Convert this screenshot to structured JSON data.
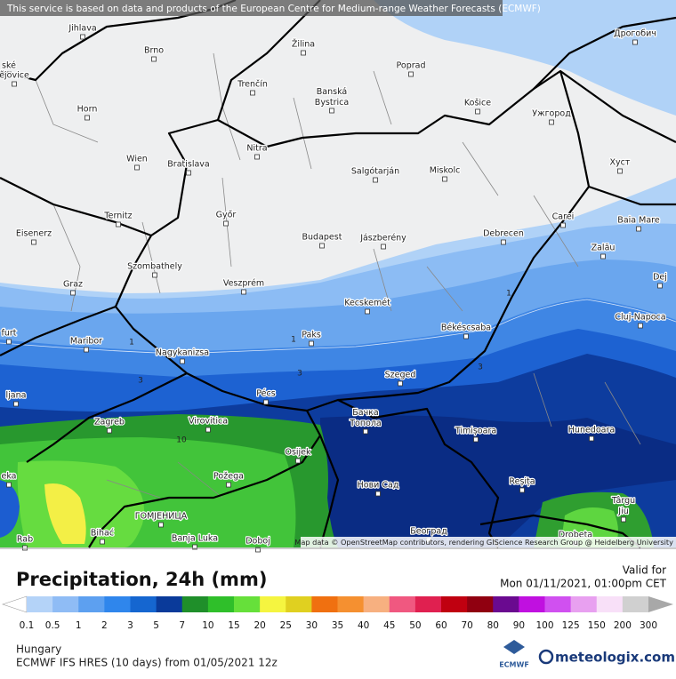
{
  "map": {
    "notice": "This service is based on data and products of the European Centre for Medium-range Weather Forecasts (ECMWF)",
    "cities": [
      "Jihlava",
      "Brno",
      "Žilina",
      "Poprad",
      "Дрогобич",
      "ské",
      "ějovice",
      "Trenčín",
      "Banská Bystrica",
      "Košice",
      "Ужгород",
      "Horn",
      "Nitra",
      "Wien",
      "Bratislava",
      "Salgótarján",
      "Miskolc",
      "Хуст",
      "Ternitz",
      "Győr",
      "Carei",
      "Baia Mare",
      "Eisenerz",
      "Budapest",
      "Jászberény",
      "Debrecen",
      "Szombathely",
      "Zalău",
      "Graz",
      "Veszprém",
      "Dej",
      "Kecskemét",
      "Cluj-Napoca",
      "furt",
      "Maribor",
      "Paks",
      "Békéscsaba",
      "Nagykanizsa",
      "Szeged",
      "ljana",
      "Pécs",
      "Бачка Топола",
      "Zagreb",
      "Virovitica",
      "Timișoara",
      "Hunedoara",
      "Osijek",
      "eka",
      "Požega",
      "Нови Сад",
      "Reșița",
      "Târgu Jiu",
      "ГОМЈЕНИЦА",
      "Bihać",
      "Banja Luka",
      "Doboj",
      "Београд",
      "Drobeta",
      "Rab"
    ],
    "contour_labels": [
      1,
      1,
      3,
      3,
      1,
      3,
      10
    ],
    "attribution": "Map data © OpenStreetMap contributors, rendering GIScience Research Group @ Heidelberg University"
  },
  "legend": {
    "title": "Precipitation, 24h (mm)",
    "valid_label": "Valid for",
    "valid_time": "Mon 01/11/2021, 01:00pm CET",
    "labels": [
      0.1,
      0.5,
      1,
      2,
      3,
      5,
      7,
      10,
      15,
      20,
      25,
      30,
      35,
      40,
      45,
      50,
      60,
      70,
      80,
      90,
      100,
      125,
      150,
      200,
      300
    ],
    "colors": [
      "#b4d3f8",
      "#8fbcf5",
      "#5da0f0",
      "#2f86ec",
      "#1566d0",
      "#0a3a9a",
      "#1f8f2a",
      "#2fbf2a",
      "#66e03a",
      "#f5f540",
      "#e0d020",
      "#f07010",
      "#f59030",
      "#f7b080",
      "#f05880",
      "#e02050",
      "#c00010",
      "#900010",
      "#6a0a90",
      "#c010e0",
      "#d050f0",
      "#e8a0f0",
      "#f8e0f8",
      "#d0d0d0"
    ],
    "under_color": "#ffffff",
    "over_color": "#a8a8a8"
  },
  "footer": {
    "region": "Hungary",
    "model": "ECMWF IFS HRES (10 days) from 01/05/2021 12z",
    "logo_ecmwf": "ECMWF",
    "logo_site": "meteologix.com"
  }
}
